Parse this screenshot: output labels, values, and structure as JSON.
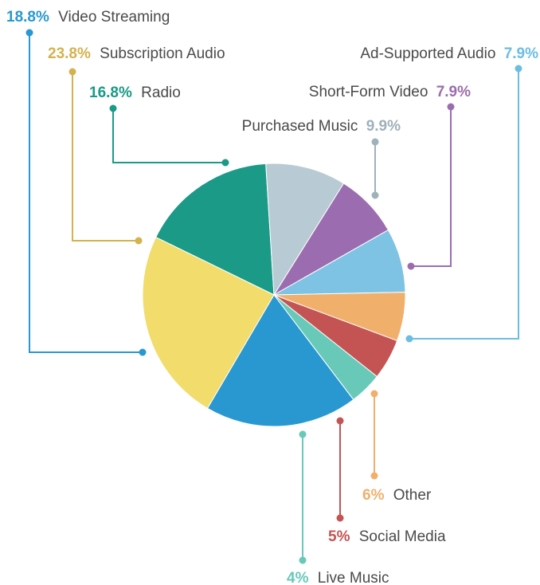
{
  "chart_data": {
    "type": "pie",
    "slices": [
      {
        "label": "Radio",
        "value": 16.8,
        "color": "#1a9a87"
      },
      {
        "label": "Purchased Music",
        "value": 9.9,
        "color": "#b8cad3"
      },
      {
        "label": "Short-Form Video",
        "value": 7.9,
        "color": "#9b6db0"
      },
      {
        "label": "Ad-Supported Audio",
        "value": 7.9,
        "color": "#7ec3e3"
      },
      {
        "label": "Other",
        "value": 6,
        "color": "#f0b06c"
      },
      {
        "label": "Social Media",
        "value": 5,
        "color": "#c45454"
      },
      {
        "label": "Live Music",
        "value": 4,
        "color": "#68c9b8"
      },
      {
        "label": "Video Streaming",
        "value": 18.8,
        "color": "#2998d0"
      },
      {
        "label": "Subscription Audio",
        "value": 23.8,
        "color": "#f1dc6c"
      }
    ],
    "labels": [
      {
        "pct": "18.8%",
        "name": "Video Streaming",
        "pct_color": "#2998d0"
      },
      {
        "pct": "23.8%",
        "name": "Subscription Audio",
        "pct_color": "#d4b24e"
      },
      {
        "pct": "16.8%",
        "name": "Radio",
        "pct_color": "#1a9a87"
      },
      {
        "pct": "9.9%",
        "name": "Purchased Music",
        "pct_color": "#9fb1bb"
      },
      {
        "pct": "7.9%",
        "name": "Short-Form Video",
        "pct_color": "#9b6db0"
      },
      {
        "pct": "7.9%",
        "name": "Ad-Supported Audio",
        "pct_color": "#6cbde3"
      },
      {
        "pct": "6%",
        "name": "Other",
        "pct_color": "#f0b06c"
      },
      {
        "pct": "5%",
        "name": "Social Media",
        "pct_color": "#c45454"
      },
      {
        "pct": "4%",
        "name": "Live Music",
        "pct_color": "#68c9b8"
      }
    ]
  }
}
